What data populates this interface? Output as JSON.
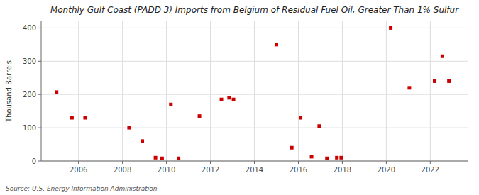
{
  "chart_data": {
    "type": "scatter",
    "title": "Monthly Gulf Coast (PADD 3) Imports from Belgium of Residual Fuel Oil, Greater Than 1% Sulfur",
    "ylabel": "Thousand Barrels",
    "annotations": [
      "Source: U.S. Energy Information Administration"
    ],
    "color": "#cc0000",
    "marker": "square",
    "grid": true,
    "xlim": [
      2004.3,
      2023.7
    ],
    "ylim": [
      0,
      420
    ],
    "xticks": [
      2006,
      2008,
      2010,
      2012,
      2014,
      2016,
      2018,
      2020,
      2022
    ],
    "yticks": [
      0,
      100,
      200,
      300,
      400
    ],
    "x": [
      2005.0,
      2005.7,
      2006.3,
      2008.3,
      2008.9,
      2009.5,
      2009.8,
      2010.2,
      2010.55,
      2011.5,
      2012.5,
      2012.85,
      2013.05,
      2015.0,
      2015.7,
      2016.1,
      2016.6,
      2016.95,
      2017.3,
      2017.75,
      2017.95,
      2020.2,
      2021.05,
      2022.2,
      2022.55,
      2022.85
    ],
    "values": [
      207,
      130,
      130,
      100,
      60,
      10,
      8,
      170,
      8,
      135,
      185,
      190,
      185,
      350,
      40,
      130,
      13,
      105,
      8,
      10,
      10,
      400,
      220,
      240,
      315,
      240
    ]
  }
}
